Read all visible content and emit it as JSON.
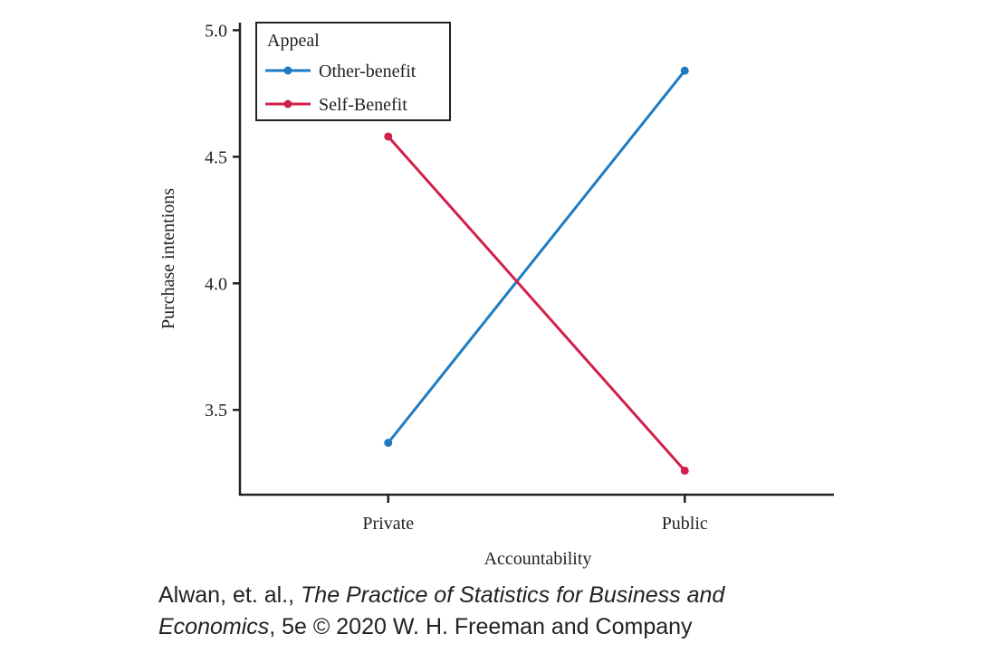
{
  "chart_data": {
    "type": "line",
    "categories": [
      "Private",
      "Public"
    ],
    "series": [
      {
        "name": "Other-benefit",
        "color": "#1f7bc1",
        "values": [
          3.37,
          4.84
        ]
      },
      {
        "name": "Self-Benefit",
        "color": "#d0204b",
        "values": [
          4.58,
          3.26
        ]
      }
    ],
    "ylim": [
      3.165,
      5.03
    ],
    "yticks": [
      3.5,
      {
        "value": 4,
        "label": "4.0"
      },
      4.5,
      {
        "value": 5,
        "label": "5.0"
      }
    ],
    "xlabel": "Accountability",
    "ylabel": "Purchase intentions",
    "legend_title": "Appeal",
    "legend": "upper left"
  },
  "source": [
    "Alwan, et. al., ",
    "The Practice of Statistics for Business and",
    "Economics",
    ", 5e © 2020 W. H. Freeman and Company"
  ]
}
